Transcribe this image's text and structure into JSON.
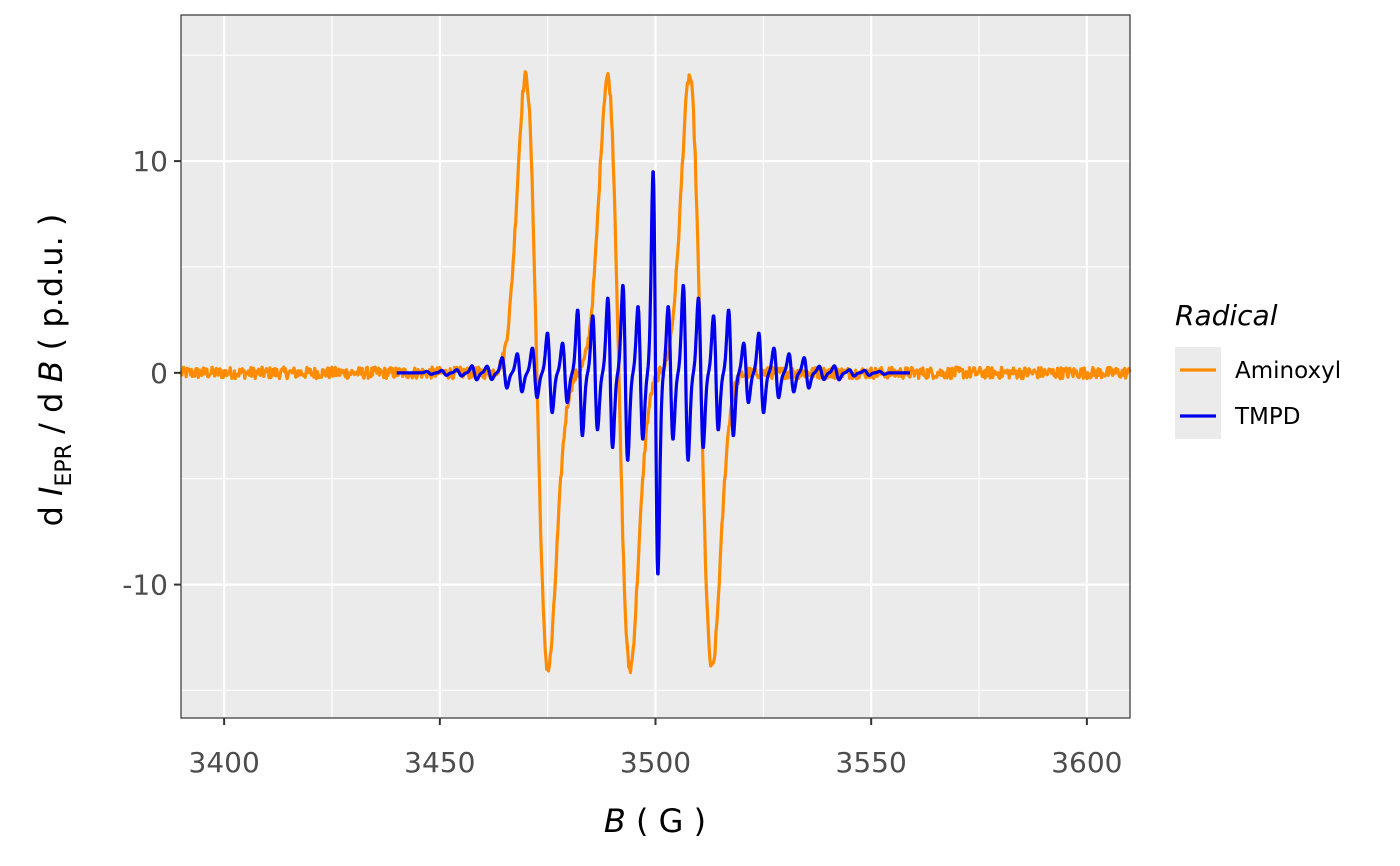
{
  "chart_data": {
    "type": "line",
    "xlabel": "B ( G )",
    "ylabel": "d I EPR / d B  ( p.d.u. )",
    "xlim": [
      3390,
      3610
    ],
    "ylim": [
      -16.3,
      16.9
    ],
    "x_ticks": [
      "3400",
      "3450",
      "3500",
      "3550",
      "3600"
    ],
    "x_tick_values": [
      3400,
      3450,
      3500,
      3550,
      3600
    ],
    "y_ticks": [
      "10",
      "0",
      "-10"
    ],
    "y_tick_values": [
      10,
      0,
      -10
    ],
    "grid": true,
    "legend": {
      "title": "Radical",
      "placement": "right"
    },
    "series": [
      {
        "name": "Aminoxyl",
        "color": "#FF8C00",
        "x_range": [
          3390,
          3610
        ],
        "lines": [
          {
            "center": 3472.5,
            "amplitude": 14.0
          },
          {
            "center": 3491.5,
            "amplitude": 14.0
          },
          {
            "center": 3510.5,
            "amplitude": 14.0
          }
        ],
        "approx_peak_values": {
          "max": 14.1,
          "min": -13.3
        }
      },
      {
        "name": "TMPD",
        "color": "#0000EE",
        "x_range": [
          3440,
          3559
        ],
        "center": 3500,
        "approx_peak_values": {
          "max": 8.7,
          "min": -8.2
        }
      }
    ]
  }
}
